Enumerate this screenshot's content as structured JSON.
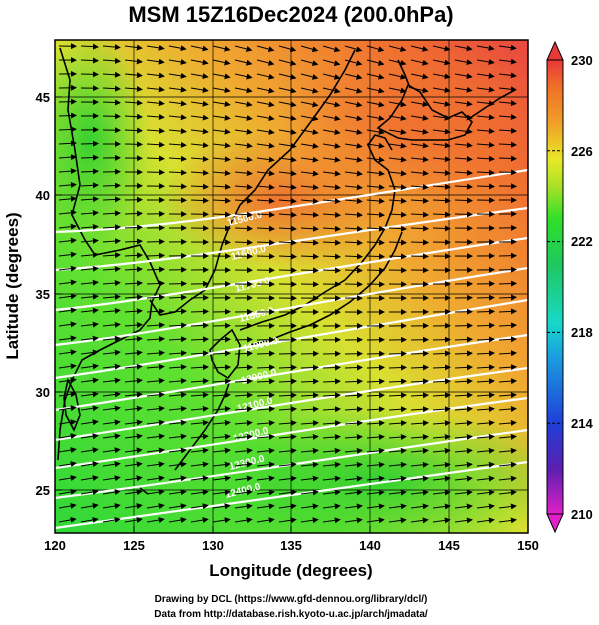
{
  "title": "MSM 15Z16Dec2024 (200.0hPa)",
  "xlabel": "Longitude (degrees)",
  "ylabel": "Latitude  (degrees)",
  "x_ticks": [
    120,
    125,
    130,
    135,
    140,
    145,
    150
  ],
  "y_ticks": [
    25,
    30,
    35,
    40,
    45
  ],
  "x_range": [
    120,
    150
  ],
  "y_range": [
    22.5,
    47.5
  ],
  "colorbar": {
    "min": 210,
    "max": 230,
    "ticks": [
      210,
      214,
      218,
      222,
      226,
      230
    ],
    "stops": [
      "#e020c8",
      "#5a1fb0",
      "#1f3fd8",
      "#1aa0e0",
      "#18d8c8",
      "#20c860",
      "#30e028",
      "#a8e028",
      "#e8e828",
      "#f0a028",
      "#f07028",
      "#e83838"
    ]
  },
  "contour_labels": [
    "11500.0",
    "11600.0",
    "11700.0",
    "11800.0",
    "11900.0",
    "12000.0",
    "12100.0",
    "12200.0",
    "12300.0",
    "12400.0"
  ],
  "credits": {
    "line1": "Drawing by DCL (https://www.gfd-dennou.org/library/dcl/)",
    "line2": "Data from http://database.rish.kyoto-u.ac.jp/arch/jmadata/"
  }
}
